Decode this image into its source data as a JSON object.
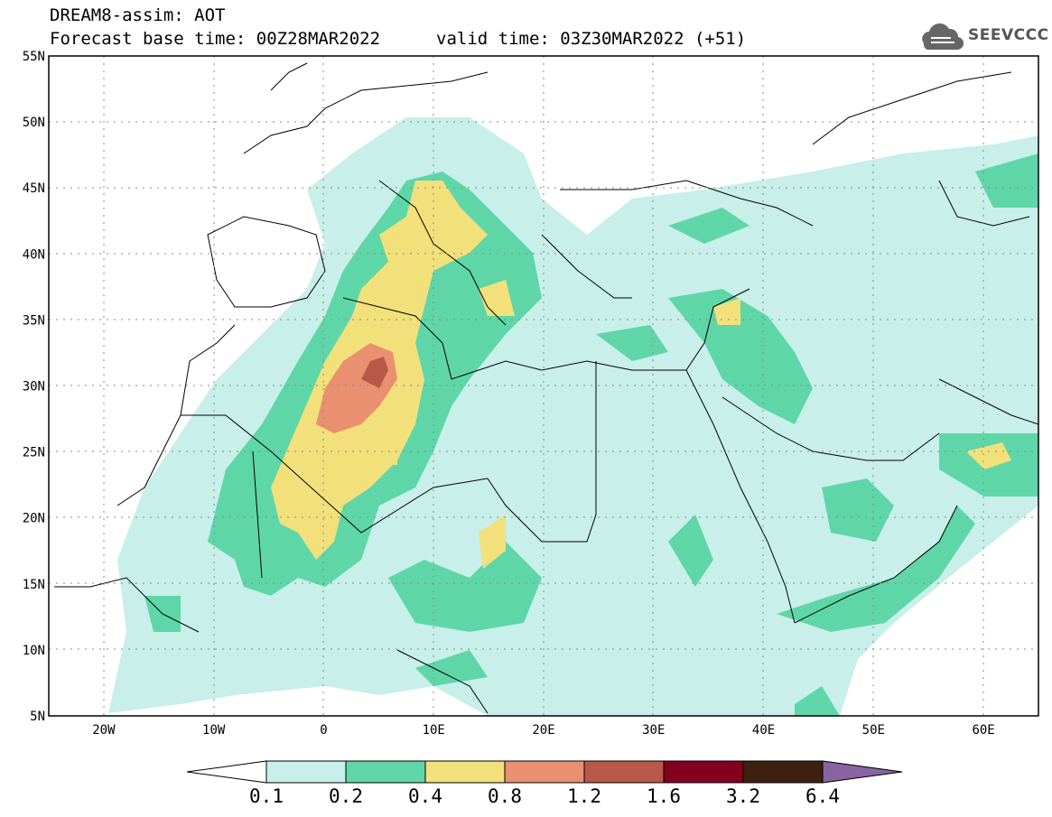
{
  "header": {
    "line1": "DREAM8-assim: AOT",
    "line2": "Forecast base time: 00Z28MAR2022",
    "valid": "valid time: 03Z30MAR2022 (+51)"
  },
  "logo": {
    "text": "SEEVCCC",
    "icon": "cloud-icon"
  },
  "map": {
    "lat_labels": [
      "55N",
      "50N",
      "45N",
      "40N",
      "35N",
      "30N",
      "25N",
      "20N",
      "15N",
      "10N",
      "5N"
    ],
    "lon_labels": [
      "20W",
      "10W",
      "0",
      "10E",
      "20E",
      "30E",
      "40E",
      "50E",
      "60E"
    ],
    "lat_range": [
      5,
      55
    ],
    "lon_range": [
      -25,
      65
    ],
    "grid": "dotted"
  },
  "colorbar": {
    "labels": [
      "0.1",
      "0.2",
      "0.4",
      "0.8",
      "1.2",
      "1.6",
      "3.2",
      "6.4"
    ],
    "colors": [
      "#c8efea",
      "#5fd6a8",
      "#f2e07a",
      "#e89070",
      "#b85848",
      "#82001e",
      "#3c2010",
      "#8864a0"
    ],
    "under_color": "#ffffff"
  }
}
